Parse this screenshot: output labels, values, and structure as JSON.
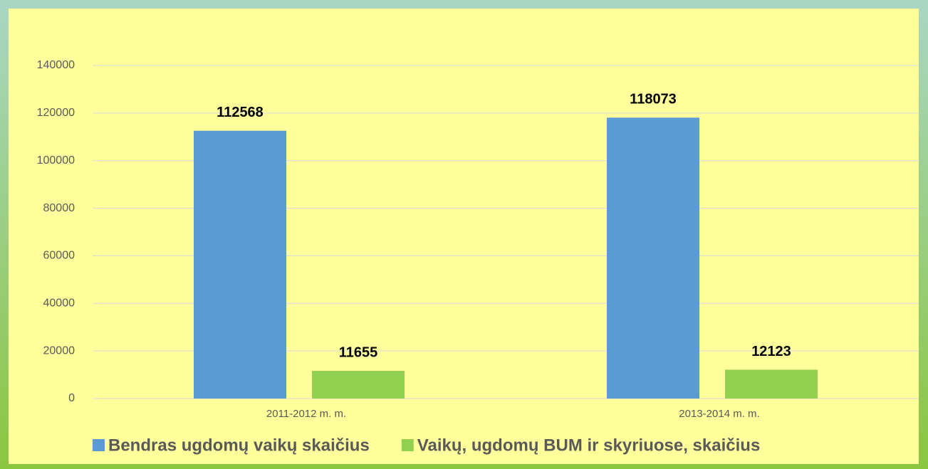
{
  "chart_data": {
    "type": "bar",
    "categories": [
      "2011-2012 m. m.",
      "2013-2014 m. m."
    ],
    "series": [
      {
        "name": "Bendras ugdomų vaikų skaičius",
        "color": "#5b9bd5",
        "values": [
          112568,
          118073
        ]
      },
      {
        "name": "Vaikų, ugdomų BUM ir skyriuose, skaičius",
        "color": "#92d050",
        "values": [
          11655,
          12123
        ]
      }
    ],
    "ylim": [
      0,
      140000
    ],
    "yticks": [
      0,
      20000,
      40000,
      60000,
      80000,
      100000,
      120000,
      140000
    ],
    "grid": true,
    "legend": "bottom"
  }
}
